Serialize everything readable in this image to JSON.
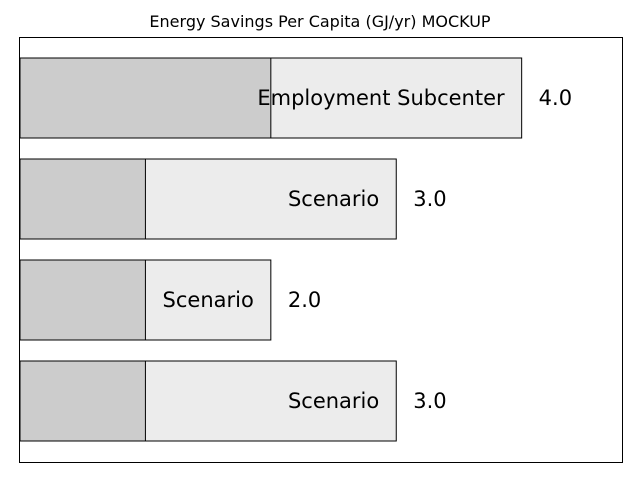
{
  "title": "Energy Savings Per Capita (GJ/yr) MOCKUP",
  "chart_data": {
    "type": "bar",
    "orientation": "horizontal",
    "title": "Energy Savings Per Capita (GJ/yr) MOCKUP",
    "xlim": [
      0,
      4.8
    ],
    "categories": [
      "Employment Subcenter",
      "Scenario",
      "Scenario",
      "Scenario"
    ],
    "values": [
      4.0,
      3.0,
      2.0,
      3.0
    ],
    "base_values": [
      2.0,
      1.0,
      1.0,
      1.0
    ],
    "value_labels": [
      "4.0",
      "3.0",
      "2.0",
      "3.0"
    ],
    "grid": false,
    "axis_ticks": false,
    "colors": {
      "bar_fill": "#ececec",
      "base_fill": "#cccccc",
      "edge": "#000000"
    }
  }
}
